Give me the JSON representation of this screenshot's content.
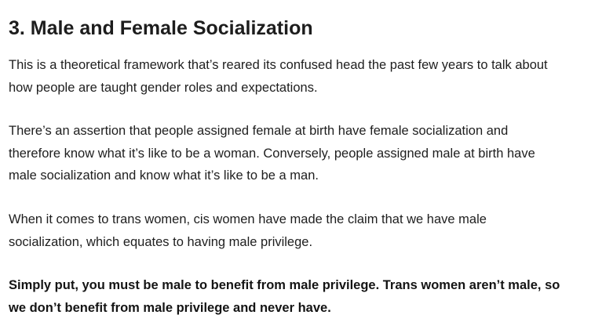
{
  "heading": "3. Male and Female Socialization",
  "paragraphs": [
    {
      "lines": [
        "This is a theoretical framework that’s reared its confused head the past few years to talk about",
        "how people are taught gender roles and expectations."
      ]
    },
    {
      "lines": [
        "There’s an assertion that people assigned female at birth have female socialization and",
        "therefore know what it’s like to be a woman. Conversely, people assigned male at birth have",
        "male socialization and know what it’s like to be a man."
      ]
    },
    {
      "lines": [
        "When it comes to trans women, cis women have made the claim that we have male",
        "socialization, which equates to having male privilege."
      ]
    },
    {
      "lines": [
        "Simply put, you must be male to benefit from male privilege. Trans women aren’t male, so",
        "we don’t benefit from male privilege and never have."
      ]
    }
  ]
}
